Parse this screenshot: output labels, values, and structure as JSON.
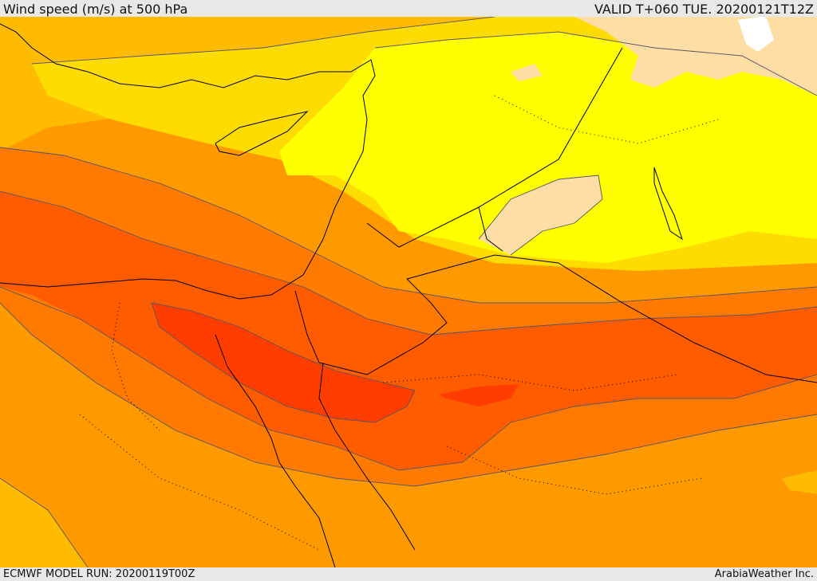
{
  "header": {
    "title": "Wind speed (m/s) at 500 hPa",
    "valid": "VALID T+060 TUE. 20200121T12Z"
  },
  "footer": {
    "model_run": "ECMWF MODEL RUN: 20200119T00Z",
    "credit": "ArabiaWeather Inc."
  },
  "palette": {
    "band_1": "#ffffff",
    "band_2": "#ffdea6",
    "band_3": "#ffff00",
    "band_4": "#ffdc00",
    "band_5": "#ffbb00",
    "band_6": "#ff9900",
    "band_7": "#ff7a00",
    "band_8": "#ff5c00",
    "band_9": "#ff3d00",
    "contour": "#555566",
    "coast": "#000000"
  }
}
